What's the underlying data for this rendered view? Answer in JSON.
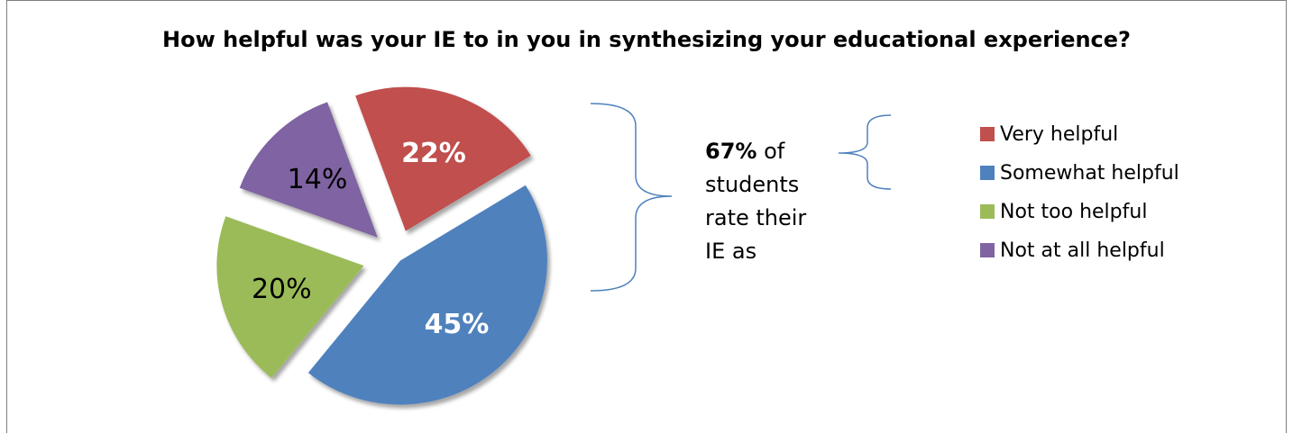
{
  "chart_data": {
    "type": "pie",
    "title": "How helpful was your IE to in you in synthesizing your educational experience?",
    "categories": [
      "Very helpful",
      "Somewhat helpful",
      "Not too helpful",
      "Not at all helpful"
    ],
    "values": [
      22,
      45,
      20,
      14
    ],
    "labels": [
      "22%",
      "45%",
      "20%",
      "14%"
    ],
    "colors": [
      "#c0504d",
      "#4f81bd",
      "#9bbb59",
      "#8064a2"
    ],
    "label_colors": [
      "#ffffff",
      "#ffffff",
      "#000000",
      "#000000"
    ],
    "legend_position": "right",
    "exploded": true
  },
  "annotation": {
    "bold": "67%",
    "text": " of students rate their IE as"
  }
}
